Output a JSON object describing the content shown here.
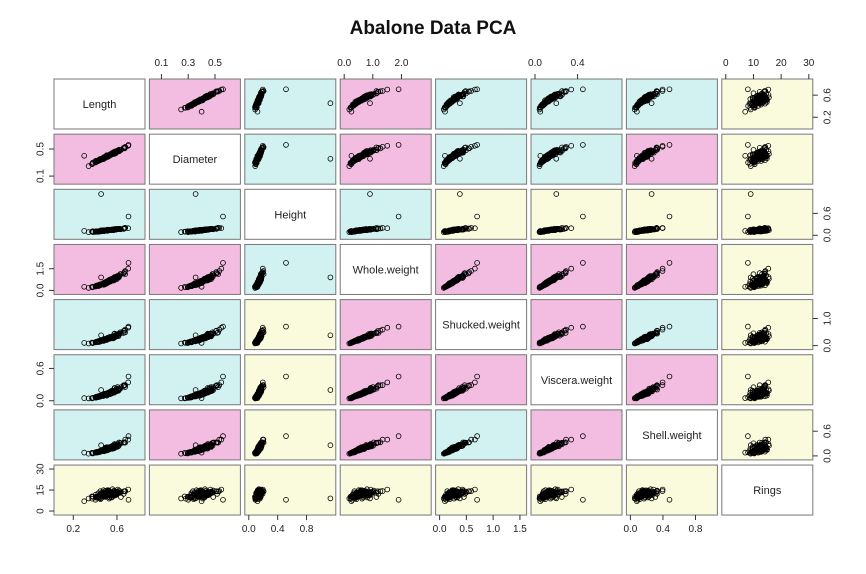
{
  "chart_data": {
    "type": "scatter",
    "subtype": "scatterplot-matrix",
    "title": "Abalone Data PCA",
    "variables": [
      "Length",
      "Diameter",
      "Height",
      "Whole.weight",
      "Shucked.weight",
      "Viscera.weight",
      "Shell.weight",
      "Rings"
    ],
    "axis_ranges": [
      [
        0.06,
        0.82
      ],
      [
        0.04,
        0.66
      ],
      [
        0.0,
        1.15
      ],
      [
        0.0,
        2.9
      ],
      [
        0.0,
        1.55
      ],
      [
        0.0,
        0.78
      ],
      [
        0.0,
        1.02
      ],
      [
        0.0,
        30.0
      ]
    ],
    "ticks": {
      "top": [
        {
          "var": 1,
          "values": [
            "0.1",
            "0.3",
            "0.5"
          ]
        },
        {
          "var": 3,
          "values": [
            "0.0",
            "1.0",
            "2.0"
          ]
        },
        {
          "var": 5,
          "values": [
            "0.0",
            "0.4"
          ]
        },
        {
          "var": 7,
          "values": [
            "0",
            "10",
            "20",
            "30"
          ]
        }
      ],
      "bottom": [
        {
          "var": 0,
          "values": [
            "0.2",
            "0.6"
          ]
        },
        {
          "var": 2,
          "values": [
            "0.0",
            "0.4",
            "0.8"
          ]
        },
        {
          "var": 4,
          "values": [
            "0.0",
            "0.5",
            "1.0",
            "1.5"
          ]
        },
        {
          "var": 6,
          "values": [
            "0.0",
            "0.4",
            "0.8"
          ]
        }
      ],
      "left": [
        {
          "var": 1,
          "values": [
            "0.1",
            "0.5"
          ]
        },
        {
          "var": 3,
          "values": [
            "0.0",
            "1.5"
          ]
        },
        {
          "var": 5,
          "values": [
            "0.0",
            "0.6"
          ]
        },
        {
          "var": 7,
          "values": [
            "0",
            "15",
            "30"
          ]
        }
      ],
      "right": [
        {
          "var": 0,
          "values": [
            "0.2",
            "0.6"
          ]
        },
        {
          "var": 2,
          "values": [
            "0.0",
            "0.6"
          ]
        },
        {
          "var": 4,
          "values": [
            "0.0",
            "1.0"
          ]
        },
        {
          "var": 6,
          "values": [
            "0.0",
            "0.6"
          ]
        }
      ]
    },
    "panel_colors": [
      [
        null,
        "#f2bde0",
        "#d2f2f2",
        "#f2bde0",
        "#d2f2f2",
        "#d2f2f2",
        "#d2f2f2",
        "#fafadc"
      ],
      [
        "#f2bde0",
        null,
        "#d2f2f2",
        "#f2bde0",
        "#d2f2f2",
        "#d2f2f2",
        "#f2bde0",
        "#fafadc"
      ],
      [
        "#d2f2f2",
        "#d2f2f2",
        null,
        "#d2f2f2",
        "#fafadc",
        "#fafadc",
        "#fafadc",
        "#fafadc"
      ],
      [
        "#f2bde0",
        "#f2bde0",
        "#d2f2f2",
        null,
        "#f2bde0",
        "#f2bde0",
        "#f2bde0",
        "#fafadc"
      ],
      [
        "#d2f2f2",
        "#d2f2f2",
        "#fafadc",
        "#f2bde0",
        null,
        "#f2bde0",
        "#d2f2f2",
        "#fafadc"
      ],
      [
        "#d2f2f2",
        "#d2f2f2",
        "#fafadc",
        "#f2bde0",
        "#f2bde0",
        null,
        "#f2bde0",
        "#fafadc"
      ],
      [
        "#d2f2f2",
        "#f2bde0",
        "#fafadc",
        "#f2bde0",
        "#d2f2f2",
        "#f2bde0",
        null,
        "#fafadc"
      ],
      [
        "#fafadc",
        "#fafadc",
        "#fafadc",
        "#fafadc",
        "#fafadc",
        "#fafadc",
        "#fafadc",
        null
      ]
    ],
    "grid": false,
    "point_style": "open circles"
  }
}
